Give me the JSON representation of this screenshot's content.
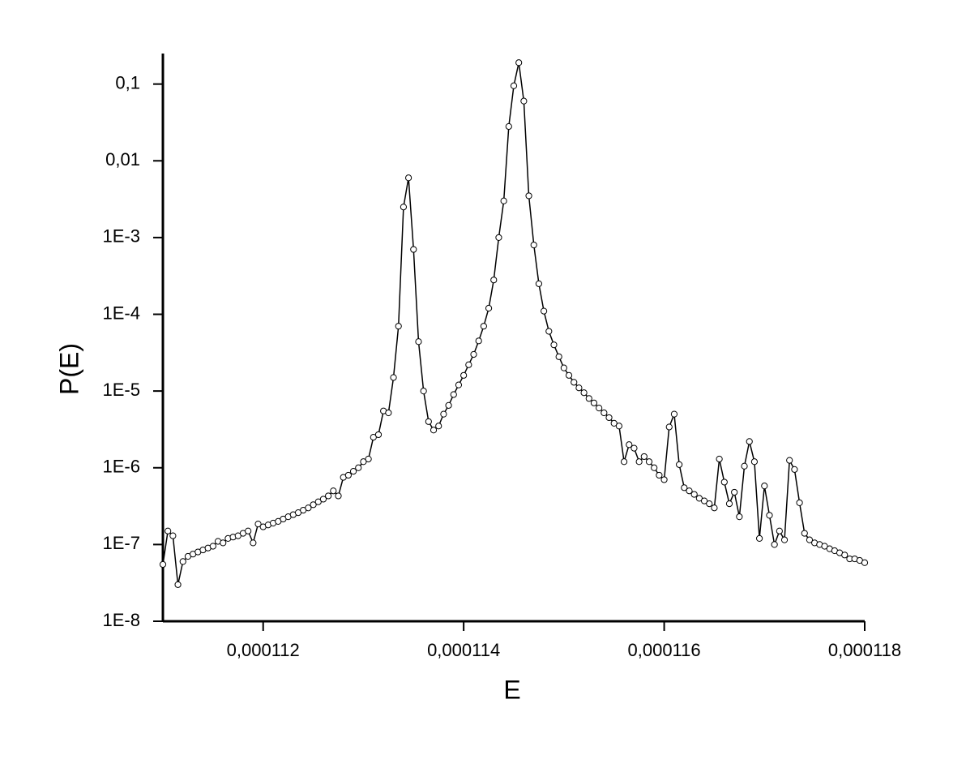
{
  "chart_data": {
    "type": "line",
    "x_label": "E",
    "y_label": "P(E)",
    "log_y": true,
    "color": "#000000",
    "x": [
      0.000111,
      0.00011105,
      0.0001111,
      0.00011115,
      0.0001112,
      0.00011125,
      0.0001113,
      0.00011135,
      0.0001114,
      0.00011145,
      0.0001115,
      0.00011155,
      0.0001116,
      0.00011165,
      0.0001117,
      0.00011175,
      0.0001118,
      0.00011185,
      0.0001119,
      0.00011195,
      0.000112,
      0.00011205,
      0.0001121,
      0.00011215,
      0.0001122,
      0.00011225,
      0.0001123,
      0.00011235,
      0.0001124,
      0.00011245,
      0.0001125,
      0.00011255,
      0.0001126,
      0.00011265,
      0.0001127,
      0.00011275,
      0.0001128,
      0.00011285,
      0.0001129,
      0.00011295,
      0.000113,
      0.00011305,
      0.0001131,
      0.00011315,
      0.0001132,
      0.00011325,
      0.0001133,
      0.00011335,
      0.0001134,
      0.00011345,
      0.0001135,
      0.00011355,
      0.0001136,
      0.00011365,
      0.0001137,
      0.00011375,
      0.0001138,
      0.00011385,
      0.0001139,
      0.00011395,
      0.000114,
      0.00011405,
      0.0001141,
      0.00011415,
      0.0001142,
      0.00011425,
      0.0001143,
      0.00011435,
      0.0001144,
      0.00011445,
      0.0001145,
      0.00011455,
      0.0001146,
      0.00011465,
      0.0001147,
      0.00011475,
      0.0001148,
      0.00011485,
      0.0001149,
      0.00011495,
      0.000115,
      0.00011505,
      0.0001151,
      0.00011515,
      0.0001152,
      0.00011525,
      0.0001153,
      0.00011535,
      0.0001154,
      0.00011545,
      0.0001155,
      0.00011555,
      0.0001156,
      0.00011565,
      0.0001157,
      0.00011575,
      0.0001158,
      0.00011585,
      0.0001159,
      0.00011595,
      0.000116,
      0.00011605,
      0.0001161,
      0.00011615,
      0.0001162,
      0.00011625,
      0.0001163,
      0.00011635,
      0.0001164,
      0.00011645,
      0.0001165,
      0.00011655,
      0.0001166,
      0.00011665,
      0.0001167,
      0.00011675,
      0.0001168,
      0.00011685,
      0.0001169,
      0.00011695,
      0.000117,
      0.00011705,
      0.0001171,
      0.00011715,
      0.0001172,
      0.00011725,
      0.0001173,
      0.00011735,
      0.0001174,
      0.00011745,
      0.0001175,
      0.00011755,
      0.0001176,
      0.00011765,
      0.0001177,
      0.00011775,
      0.0001178,
      0.00011785,
      0.0001179,
      0.00011795,
      0.000118
    ],
    "values": [
      5.5e-08,
      1.5e-07,
      1.3e-07,
      3e-08,
      6e-08,
      7e-08,
      7.5e-08,
      8e-08,
      8.5e-08,
      9e-08,
      9.5e-08,
      1.1e-07,
      1.05e-07,
      1.2e-07,
      1.25e-07,
      1.3e-07,
      1.4e-07,
      1.5e-07,
      1.05e-07,
      1.85e-07,
      1.7e-07,
      1.8e-07,
      1.9e-07,
      2e-07,
      2.15e-07,
      2.3e-07,
      2.45e-07,
      2.6e-07,
      2.8e-07,
      3e-07,
      3.3e-07,
      3.6e-07,
      3.9e-07,
      4.3e-07,
      5e-07,
      4.3e-07,
      7.5e-07,
      8e-07,
      9e-07,
      1e-06,
      1.2e-06,
      1.3e-06,
      2.5e-06,
      2.7e-06,
      5.5e-06,
      5.2e-06,
      1.5e-05,
      7e-05,
      0.0025,
      0.006,
      0.0007,
      4.4e-05,
      1e-05,
      4e-06,
      3.1e-06,
      3.5e-06,
      5e-06,
      6.5e-06,
      9e-06,
      1.2e-05,
      1.6e-05,
      2.2e-05,
      3e-05,
      4.5e-05,
      7e-05,
      0.00012,
      0.00028,
      0.001,
      0.003,
      0.028,
      0.095,
      0.19,
      0.06,
      0.0035,
      0.0008,
      0.00025,
      0.00011,
      6e-05,
      4e-05,
      2.8e-05,
      2e-05,
      1.6e-05,
      1.3e-05,
      1.1e-05,
      9.5e-06,
      8e-06,
      7e-06,
      6e-06,
      5.2e-06,
      4.5e-06,
      3.8e-06,
      3.5e-06,
      1.2e-06,
      2e-06,
      1.8e-06,
      1.2e-06,
      1.4e-06,
      1.2e-06,
      1e-06,
      8e-07,
      7e-07,
      3.4e-06,
      5e-06,
      1.1e-06,
      5.5e-07,
      5e-07,
      4.5e-07,
      4e-07,
      3.7e-07,
      3.4e-07,
      3e-07,
      1.3e-06,
      6.5e-07,
      3.4e-07,
      4.8e-07,
      2.3e-07,
      1.05e-06,
      2.2e-06,
      1.2e-06,
      1.2e-07,
      5.8e-07,
      2.4e-07,
      1e-07,
      1.5e-07,
      1.15e-07,
      1.25e-06,
      9.5e-07,
      3.5e-07,
      1.4e-07,
      1.15e-07,
      1.05e-07,
      1e-07,
      9.5e-08,
      8.8e-08,
      8.3e-08,
      7.8e-08,
      7.3e-08,
      6.5e-08,
      6.5e-08,
      6.2e-08,
      5.8e-08
    ],
    "xlim": [
      0.000111,
      0.000118
    ],
    "xticks": [
      {
        "value": 0.000112,
        "label": "0,000112"
      },
      {
        "value": 0.000114,
        "label": "0,000114"
      },
      {
        "value": 0.000116,
        "label": "0,000116"
      },
      {
        "value": 0.000118,
        "label": "0,000118"
      }
    ],
    "ylim": [
      1e-08,
      0.25
    ],
    "yticks": [
      {
        "value": 1e-08,
        "label": "1E-8"
      },
      {
        "value": 1e-07,
        "label": "1E-7"
      },
      {
        "value": 1e-06,
        "label": "1E-6"
      },
      {
        "value": 1e-05,
        "label": "1E-5"
      },
      {
        "value": 0.0001,
        "label": "1E-4"
      },
      {
        "value": 0.001,
        "label": "1E-3"
      },
      {
        "value": 0.01,
        "label": "0,01"
      },
      {
        "value": 0.1,
        "label": "0,1"
      }
    ]
  }
}
